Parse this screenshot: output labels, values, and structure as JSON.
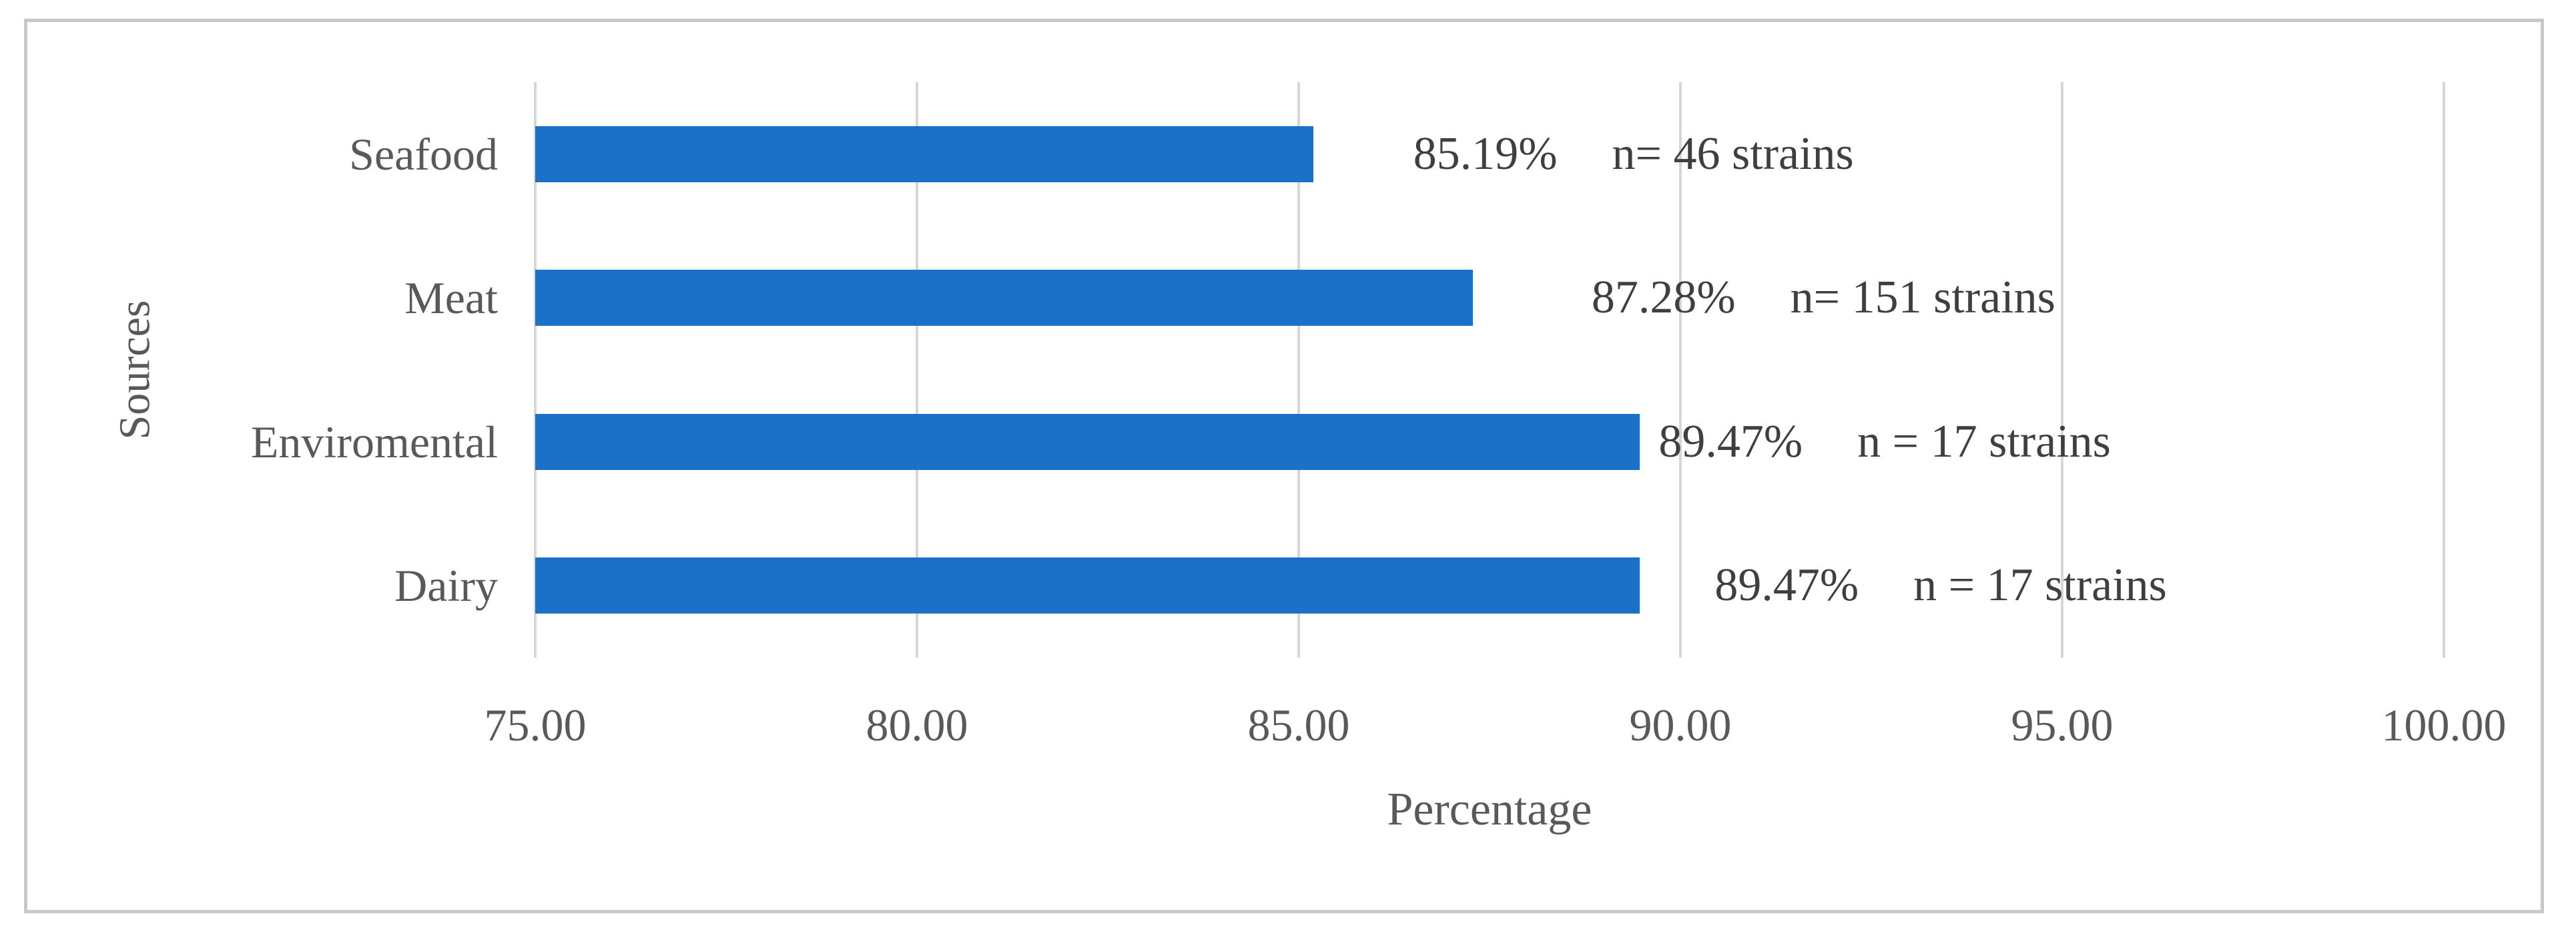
{
  "chart_data": {
    "type": "bar",
    "orientation": "horizontal",
    "title": "",
    "xlabel": "Percentage",
    "ylabel": "Sources",
    "categories": [
      "Seafood",
      "Meat",
      "Enviromental",
      "Dairy"
    ],
    "values": [
      85.19,
      87.28,
      89.47,
      89.47
    ],
    "value_labels": [
      "85.19%",
      "87.28%",
      "89.47%",
      "89.47%"
    ],
    "count_labels": [
      "n= 46 strains",
      "n= 151 strains",
      "n = 17 strains",
      "n = 17 strains"
    ],
    "xlim": [
      75,
      100
    ],
    "xticks": [
      75,
      80,
      85,
      90,
      95,
      100
    ],
    "xtick_labels": [
      "75.00",
      "80.00",
      "85.00",
      "90.00",
      "95.00",
      "100.00"
    ],
    "grid": true,
    "legend": "none",
    "bars_start_at": 75
  },
  "colors": {
    "bar": "#1b71c7",
    "gridline": "#d6d6d6",
    "frame_border": "#c9c9c9",
    "tick_text": "#595959",
    "category_text": "#595959",
    "data_label_text": "#3f3f3f",
    "background": "#ffffff"
  }
}
